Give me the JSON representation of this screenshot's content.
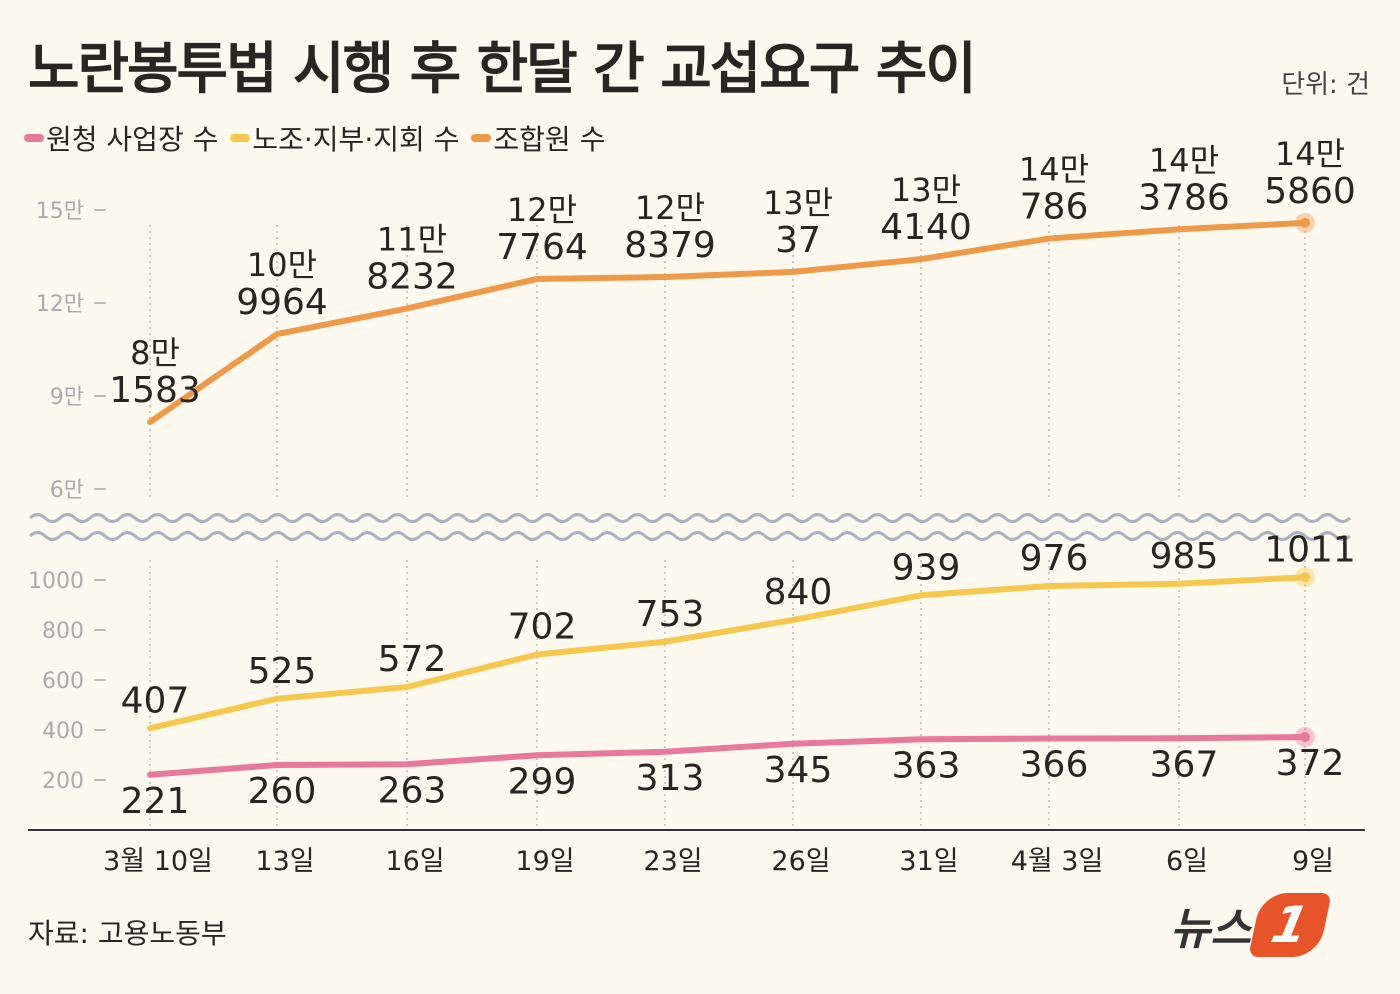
{
  "title": "노란봉투법 시행 후 한달 간 교섭요구 추이",
  "unit": "단위: 건",
  "source": "자료: 고용노동부",
  "logo": {
    "text": "뉴스",
    "mark": "1"
  },
  "colors": {
    "pink": "#e8799a",
    "yellow": "#f7c84f",
    "orange": "#ef9a4a",
    "background": "#fdf9ef"
  },
  "chart_data": {
    "type": "line",
    "categories": [
      "3월 10일",
      "13일",
      "16일",
      "19일",
      "23일",
      "26일",
      "31일",
      "4월 3일",
      "6일",
      "9일"
    ],
    "broken_axis": true,
    "upper_axis": {
      "ticks": [
        60000,
        90000,
        120000,
        150000
      ],
      "tick_labels": [
        "6만",
        "9만",
        "12만",
        "15만"
      ]
    },
    "lower_axis": {
      "ticks": [
        200,
        400,
        600,
        800,
        1000
      ],
      "tick_labels": [
        "200",
        "400",
        "600",
        "800",
        "1000"
      ]
    },
    "legend": [
      "원청 사업장 수",
      "노조·지부·지회 수",
      "조합원 수"
    ],
    "legend_placement": "top-left",
    "series": [
      {
        "name": "원청 사업장 수",
        "color": "#e8799a",
        "axis": "lower",
        "values": [
          221,
          260,
          263,
          299,
          313,
          345,
          363,
          366,
          367,
          372
        ],
        "labels": [
          [
            "221"
          ],
          [
            "260"
          ],
          [
            "263"
          ],
          [
            "299"
          ],
          [
            "313"
          ],
          [
            "345"
          ],
          [
            "363"
          ],
          [
            "366"
          ],
          [
            "367"
          ],
          [
            "372"
          ]
        ]
      },
      {
        "name": "노조·지부·지회 수",
        "color": "#f7c84f",
        "axis": "lower",
        "values": [
          407,
          525,
          572,
          702,
          753,
          840,
          939,
          976,
          985,
          1011
        ],
        "labels": [
          [
            "407"
          ],
          [
            "525"
          ],
          [
            "572"
          ],
          [
            "702"
          ],
          [
            "753"
          ],
          [
            "840"
          ],
          [
            "939"
          ],
          [
            "976"
          ],
          [
            "985"
          ],
          [
            "1011"
          ]
        ]
      },
      {
        "name": "조합원 수",
        "color": "#ef9a4a",
        "axis": "upper",
        "values": [
          81583,
          109964,
          118232,
          127764,
          128379,
          130037,
          134140,
          140786,
          143786,
          145860
        ],
        "labels": [
          [
            "8만",
            "1583"
          ],
          [
            "10만",
            "9964"
          ],
          [
            "11만",
            "8232"
          ],
          [
            "12만",
            "7764"
          ],
          [
            "12만",
            "8379"
          ],
          [
            "13만",
            "37"
          ],
          [
            "13만",
            "4140"
          ],
          [
            "14만",
            "786"
          ],
          [
            "14만",
            "3786"
          ],
          [
            "14만",
            "5860"
          ]
        ]
      }
    ]
  }
}
